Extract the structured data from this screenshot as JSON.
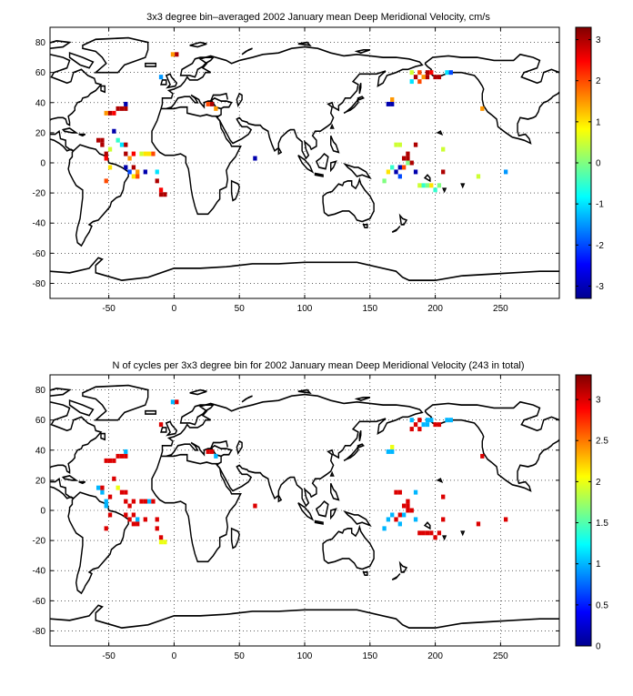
{
  "panels": [
    {
      "title": "3x3 degree bin–averaged 2002 January mean Deep Meridional Velocity, cm/s",
      "x_ticks": [
        "-50",
        "0",
        "50",
        "100",
        "150",
        "200",
        "250"
      ],
      "y_ticks": [
        "80",
        "60",
        "40",
        "20",
        "0",
        "-20",
        "-40",
        "-60",
        "-80"
      ],
      "colorbar_ticks": [
        "3",
        "2",
        "1",
        "0",
        "-1",
        "-2",
        "-3"
      ],
      "colorbar_range": [
        -3.3,
        3.3
      ]
    },
    {
      "title": "N of cycles per 3x3 degree bin for 2002 January mean Deep Meridional Velocity (243 in total)",
      "x_ticks": [
        "-50",
        "0",
        "50",
        "100",
        "150",
        "200",
        "250"
      ],
      "y_ticks": [
        "80",
        "60",
        "40",
        "20",
        "0",
        "-20",
        "-40",
        "-60",
        "-80"
      ],
      "colorbar_ticks": [
        "3",
        "2.5",
        "2",
        "1.5",
        "1",
        "0.5",
        "0"
      ],
      "colorbar_range": [
        0,
        3.3
      ]
    }
  ],
  "map": {
    "x_range": [
      -95,
      295
    ],
    "y_range": [
      -90,
      90
    ],
    "grid": "dotted",
    "colormap": "jet"
  },
  "chart_data": [
    {
      "type": "heatmap",
      "title": "3x3 degree bin–averaged 2002 January mean Deep Meridional Velocity, cm/s",
      "cells": [
        [
          -52,
          33,
          1.5
        ],
        [
          -49,
          33,
          3
        ],
        [
          -46,
          33,
          2.5
        ],
        [
          -43,
          36,
          3
        ],
        [
          -40,
          36,
          3
        ],
        [
          -37,
          36,
          3
        ],
        [
          -37,
          39,
          -3
        ],
        [
          -58,
          15,
          3
        ],
        [
          -55,
          12,
          3
        ],
        [
          -55,
          15,
          3
        ],
        [
          -52,
          6,
          3
        ],
        [
          -52,
          3,
          2.5
        ],
        [
          -49,
          9,
          0.5
        ],
        [
          -49,
          -3,
          1
        ],
        [
          -46,
          21,
          -3
        ],
        [
          -43,
          15,
          -0.5
        ],
        [
          -40,
          12,
          -1
        ],
        [
          -37,
          6,
          3
        ],
        [
          -37,
          -3,
          -3
        ],
        [
          -34,
          3,
          1.5
        ],
        [
          -31,
          6,
          2.5
        ],
        [
          -31,
          -3,
          3
        ],
        [
          -28,
          -6,
          1.5
        ],
        [
          -28,
          -9,
          2
        ],
        [
          -25,
          6,
          0.5
        ],
        [
          -22,
          6,
          1
        ],
        [
          -19,
          6,
          1
        ],
        [
          -16,
          6,
          2
        ],
        [
          -34,
          -6,
          -2
        ],
        [
          -31,
          -9,
          1
        ],
        [
          -22,
          -6,
          -3
        ],
        [
          -13,
          -6,
          -1
        ],
        [
          -10,
          -18,
          2.5
        ],
        [
          -10,
          -21,
          3
        ],
        [
          -7,
          -21,
          3
        ],
        [
          -13,
          -12,
          3
        ],
        [
          -37,
          12,
          3
        ],
        [
          -52,
          -12,
          2
        ],
        [
          -1,
          72,
          1.5
        ],
        [
          2,
          72,
          3
        ],
        [
          -10,
          57,
          -1.5
        ],
        [
          62,
          3,
          -3
        ],
        [
          26,
          39,
          2
        ],
        [
          29,
          39,
          3
        ],
        [
          32,
          36,
          1.5
        ],
        [
          182,
          60,
          0.5
        ],
        [
          185,
          57,
          3
        ],
        [
          188,
          54,
          2
        ],
        [
          182,
          54,
          -1
        ],
        [
          188,
          60,
          2
        ],
        [
          191,
          57,
          1.5
        ],
        [
          194,
          57,
          3
        ],
        [
          194,
          60,
          3
        ],
        [
          197,
          60,
          2.5
        ],
        [
          200,
          57,
          3
        ],
        [
          203,
          57,
          3
        ],
        [
          209,
          60,
          -1
        ],
        [
          212,
          60,
          -2
        ],
        [
          164,
          39,
          -3
        ],
        [
          167,
          39,
          -3
        ],
        [
          167,
          42,
          1.5
        ],
        [
          170,
          12,
          0.5
        ],
        [
          173,
          12,
          0.5
        ],
        [
          170,
          -6,
          -3
        ],
        [
          173,
          -3,
          -3
        ],
        [
          173,
          -9,
          -2
        ],
        [
          167,
          -3,
          -0.5
        ],
        [
          176,
          3,
          3
        ],
        [
          179,
          3,
          3
        ],
        [
          179,
          6,
          3
        ],
        [
          182,
          0,
          3
        ],
        [
          185,
          -6,
          -3
        ],
        [
          185,
          12,
          3
        ],
        [
          164,
          -6,
          1
        ],
        [
          161,
          -12,
          0
        ],
        [
          176,
          -3,
          2
        ],
        [
          179,
          0,
          0
        ],
        [
          188,
          -15,
          0.5
        ],
        [
          191,
          -15,
          -0.5
        ],
        [
          194,
          -15,
          0
        ],
        [
          197,
          -15,
          1
        ],
        [
          200,
          -18,
          -0.5
        ],
        [
          203,
          -15,
          0
        ],
        [
          206,
          -6,
          3
        ],
        [
          206,
          9,
          0.5
        ],
        [
          233,
          -9,
          0.5
        ],
        [
          236,
          36,
          1.5
        ],
        [
          254,
          -6,
          -1.5
        ]
      ]
    },
    {
      "type": "heatmap",
      "title": "N of cycles per 3x3 degree bin for 2002 January mean Deep Meridional Velocity (243 in total)",
      "cells": [
        [
          -52,
          33,
          3
        ],
        [
          -49,
          33,
          3
        ],
        [
          -46,
          33,
          3
        ],
        [
          -43,
          36,
          3
        ],
        [
          -40,
          36,
          3
        ],
        [
          -37,
          36,
          3
        ],
        [
          -37,
          39,
          1
        ],
        [
          -58,
          15,
          1
        ],
        [
          -55,
          12,
          1
        ],
        [
          -55,
          15,
          3
        ],
        [
          -52,
          6,
          1
        ],
        [
          -52,
          3,
          1
        ],
        [
          -49,
          9,
          3
        ],
        [
          -49,
          -3,
          3
        ],
        [
          -46,
          21,
          3
        ],
        [
          -43,
          15,
          2
        ],
        [
          -40,
          12,
          3
        ],
        [
          -37,
          6,
          3
        ],
        [
          -37,
          -3,
          3
        ],
        [
          -34,
          3,
          3
        ],
        [
          -31,
          6,
          3
        ],
        [
          -31,
          -3,
          3
        ],
        [
          -28,
          -6,
          1
        ],
        [
          -28,
          -9,
          3
        ],
        [
          -25,
          6,
          3
        ],
        [
          -22,
          6,
          3
        ],
        [
          -19,
          6,
          1
        ],
        [
          -16,
          6,
          3
        ],
        [
          -34,
          -6,
          3
        ],
        [
          -31,
          -9,
          3
        ],
        [
          -22,
          -6,
          3
        ],
        [
          -13,
          -6,
          3
        ],
        [
          -10,
          -18,
          3
        ],
        [
          -10,
          -21,
          2
        ],
        [
          -7,
          -21,
          2
        ],
        [
          -13,
          -12,
          3
        ],
        [
          -37,
          12,
          3
        ],
        [
          -52,
          -12,
          3
        ],
        [
          -1,
          72,
          1
        ],
        [
          2,
          72,
          3
        ],
        [
          -10,
          57,
          3
        ],
        [
          62,
          3,
          3
        ],
        [
          26,
          39,
          3
        ],
        [
          29,
          39,
          3
        ],
        [
          32,
          36,
          1
        ],
        [
          182,
          60,
          1
        ],
        [
          185,
          57,
          3
        ],
        [
          188,
          54,
          3
        ],
        [
          182,
          54,
          3
        ],
        [
          188,
          60,
          3
        ],
        [
          191,
          57,
          1
        ],
        [
          194,
          57,
          1
        ],
        [
          194,
          60,
          1
        ],
        [
          197,
          60,
          1
        ],
        [
          200,
          57,
          3
        ],
        [
          203,
          57,
          3
        ],
        [
          209,
          60,
          1
        ],
        [
          212,
          60,
          1
        ],
        [
          164,
          39,
          1
        ],
        [
          167,
          39,
          1
        ],
        [
          167,
          42,
          2
        ],
        [
          170,
          12,
          3
        ],
        [
          173,
          12,
          3
        ],
        [
          170,
          -6,
          3
        ],
        [
          173,
          -3,
          3
        ],
        [
          173,
          -9,
          1
        ],
        [
          167,
          -3,
          1
        ],
        [
          176,
          3,
          3
        ],
        [
          179,
          3,
          3
        ],
        [
          179,
          6,
          3
        ],
        [
          182,
          0,
          3
        ],
        [
          185,
          -6,
          1
        ],
        [
          185,
          12,
          1
        ],
        [
          164,
          -6,
          1
        ],
        [
          161,
          -12,
          1
        ],
        [
          176,
          -3,
          1
        ],
        [
          179,
          0,
          3
        ],
        [
          188,
          -15,
          3
        ],
        [
          191,
          -15,
          3
        ],
        [
          194,
          -15,
          3
        ],
        [
          197,
          -15,
          3
        ],
        [
          200,
          -18,
          3
        ],
        [
          203,
          -15,
          3
        ],
        [
          206,
          -6,
          3
        ],
        [
          206,
          9,
          3
        ],
        [
          233,
          -9,
          3
        ],
        [
          236,
          36,
          3
        ],
        [
          254,
          -6,
          3
        ]
      ]
    }
  ]
}
